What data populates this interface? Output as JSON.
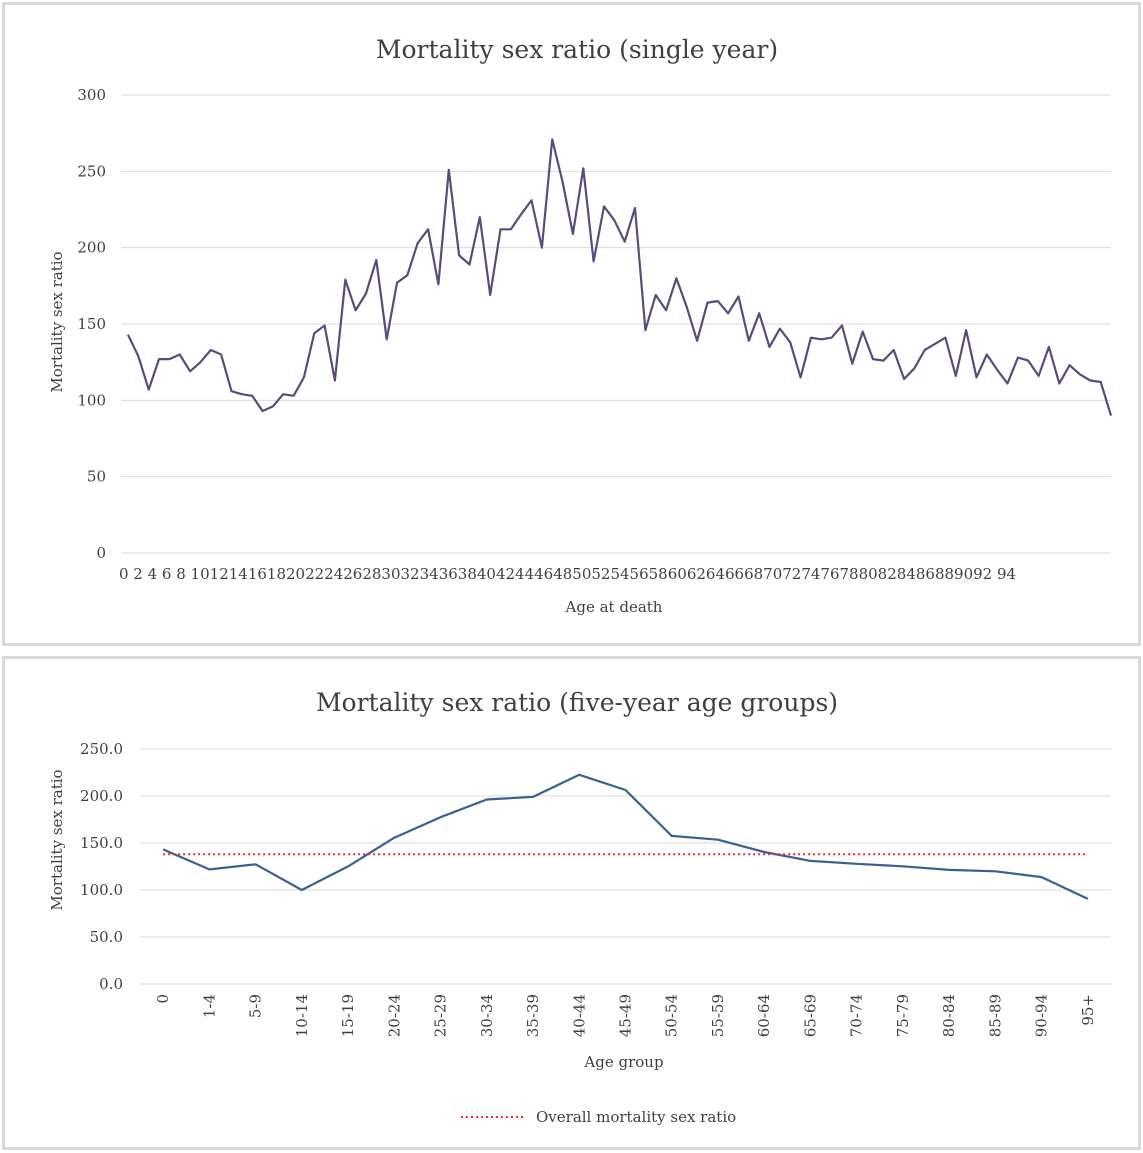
{
  "chart_data": [
    {
      "type": "line",
      "title": "Mortality sex ratio (single year)",
      "xlabel": "Age at death",
      "ylabel": "Mortality sex ratio",
      "ylim": [
        0,
        300
      ],
      "yticks": [
        "0",
        "50",
        "100",
        "150",
        "200",
        "250",
        "300"
      ],
      "tick_label_row": "0 2 4 6 8 101214161820222426283032343638404244464850525456586062646668707274767880828486889092 94",
      "grid": true,
      "legend": "none",
      "colors": {
        "line": "#5b4a7a"
      },
      "series": [
        {
          "values": [
            143,
            129,
            107,
            127,
            127,
            130,
            119,
            125,
            133,
            130,
            106,
            104,
            103,
            93,
            96,
            104,
            103,
            115,
            144,
            149,
            113,
            179,
            159,
            170,
            192,
            140,
            177,
            182,
            203,
            212,
            176,
            251,
            195,
            189,
            220,
            169,
            212,
            212,
            222,
            231,
            200,
            271,
            243,
            209,
            252,
            191,
            227,
            218,
            204,
            226,
            146,
            169,
            159,
            180,
            161,
            139,
            164,
            165,
            157,
            168,
            139,
            157,
            135,
            147,
            138,
            115,
            141,
            140,
            141,
            149,
            124,
            145,
            127,
            126,
            133,
            114,
            121,
            133,
            137,
            141,
            116,
            146,
            115,
            130,
            120,
            111,
            128,
            126,
            116,
            135,
            111,
            123,
            117,
            113,
            112,
            90
          ]
        }
      ]
    },
    {
      "type": "line",
      "title": "Mortality sex ratio (five-year age groups)",
      "xlabel": "Age group",
      "ylabel": "Mortality sex ratio",
      "ylim": [
        0,
        250
      ],
      "yticks": [
        "0.0",
        "50.0",
        "100.0",
        "150.0",
        "200.0",
        "250.0"
      ],
      "grid": true,
      "legend": "bottom",
      "categories": [
        "0",
        "1-4",
        "5-9",
        "10-14",
        "15-19",
        "20-24",
        "25-29",
        "30-34",
        "35-39",
        "40-44",
        "45-49",
        "50-54",
        "55-59",
        "60-64",
        "65-69",
        "70-74",
        "75-79",
        "80-84",
        "85-89",
        "90-94",
        "95+"
      ],
      "colors": {
        "line": "#3b5f8f",
        "overall": "#e03030"
      },
      "series": [
        {
          "values": [
            143.2,
            121.9,
            127.3,
            100.0,
            125.1,
            155.6,
            177.5,
            196.3,
            199.0,
            222.6,
            206.4,
            157.5,
            153.5,
            140.4,
            131.0,
            127.9,
            125.2,
            121.4,
            119.9,
            113.7,
            90.5
          ]
        },
        {
          "name": "Overall mortality sex ratio",
          "values": [
            138,
            138,
            138,
            138,
            138,
            138,
            138,
            138,
            138,
            138,
            138,
            138,
            138,
            138,
            138,
            138,
            138,
            138,
            138,
            138,
            138
          ]
        }
      ]
    }
  ]
}
